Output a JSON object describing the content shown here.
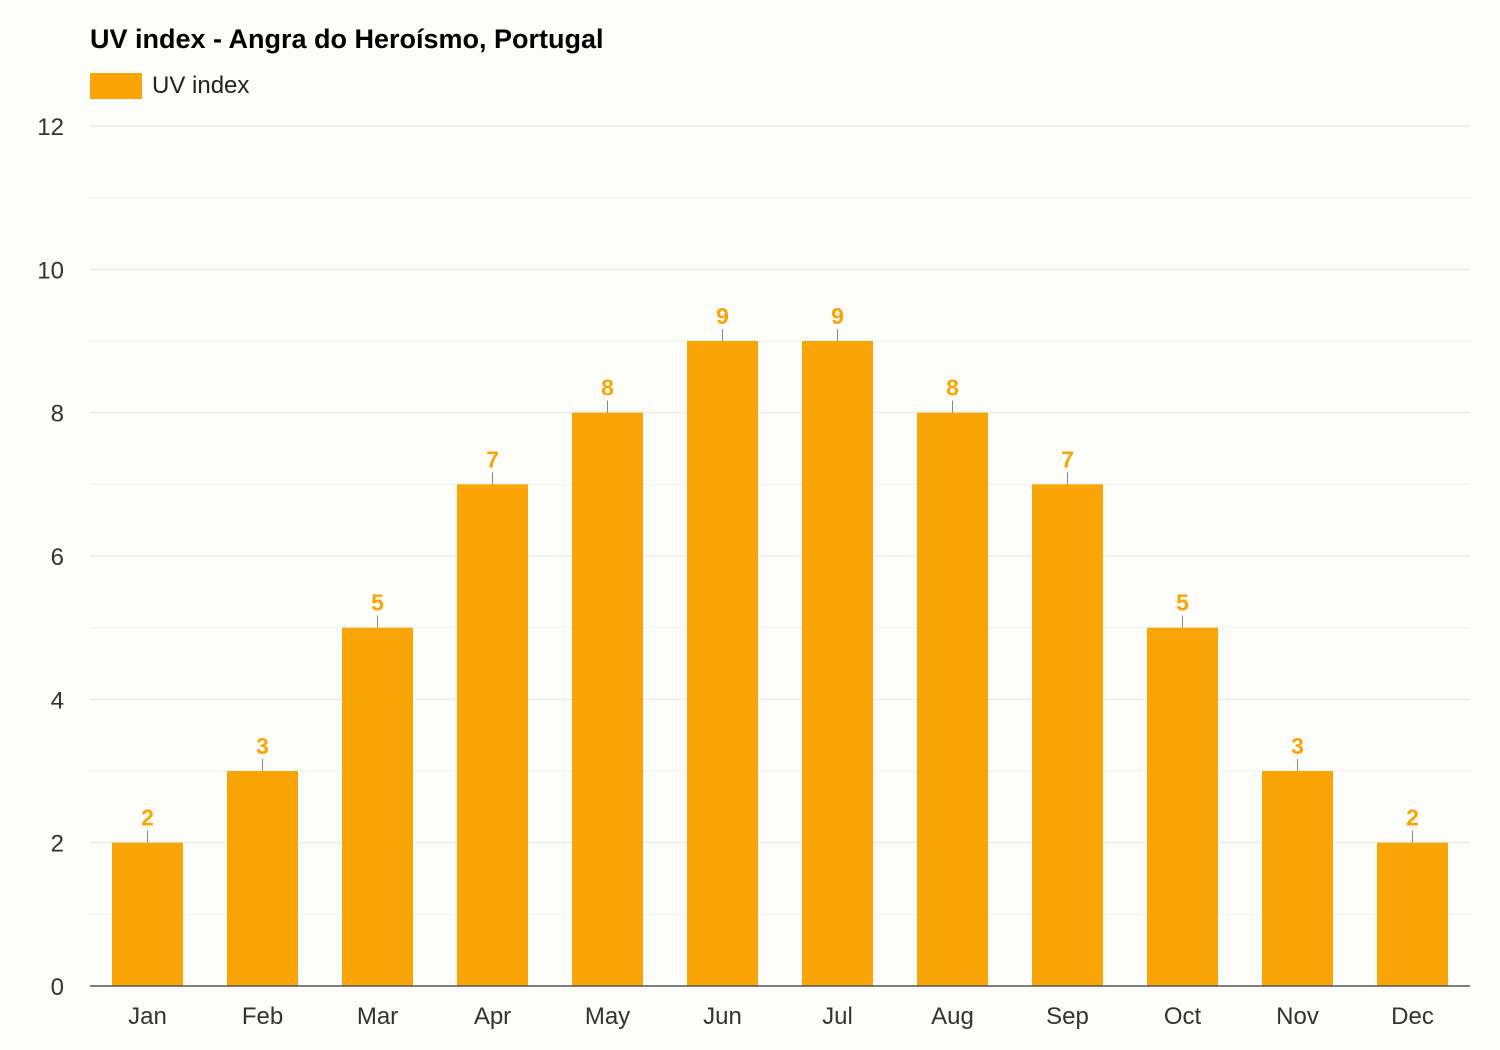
{
  "chart_data": {
    "type": "bar",
    "title": "UV index - Angra do Heroísmo, Portugal",
    "xlabel": "",
    "ylabel": "",
    "categories": [
      "Jan",
      "Feb",
      "Mar",
      "Apr",
      "May",
      "Jun",
      "Jul",
      "Aug",
      "Sep",
      "Oct",
      "Nov",
      "Dec"
    ],
    "series": [
      {
        "name": "UV index",
        "values": [
          2,
          3,
          5,
          7,
          8,
          9,
          9,
          8,
          7,
          5,
          3,
          2
        ],
        "color": "#faa507"
      }
    ],
    "ylim": [
      0,
      12
    ],
    "yticks": [
      0,
      2,
      4,
      6,
      8,
      10,
      12
    ],
    "grid": true,
    "legend_position": "top-left",
    "data_labels": true
  },
  "colors": {
    "bar": "#faa507",
    "data_label": "#faa507",
    "background": "#fcfcf8",
    "grid": "#e6e6e6",
    "axis": "#555555"
  }
}
